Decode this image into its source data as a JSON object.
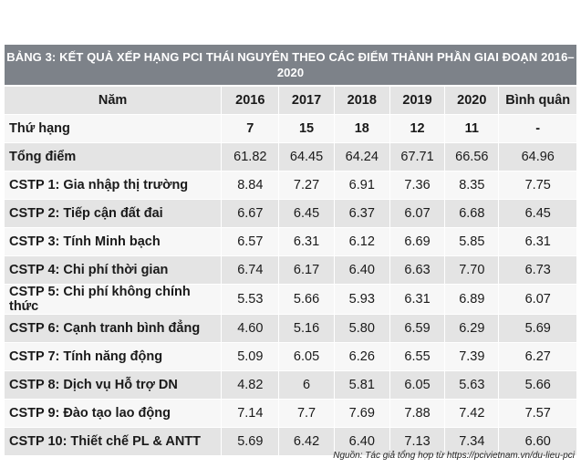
{
  "table_title": "BẢNG 3: KẾT QUẢ XẾP HẠNG PCI THÁI NGUYÊN THEO CÁC ĐIỂM THÀNH PHẦN GIAI ĐOẠN 2016–2020",
  "columns": [
    "Năm",
    "2016",
    "2017",
    "2018",
    "2019",
    "2020",
    "Bình quân"
  ],
  "rows": [
    {
      "label": "Thứ hạng",
      "values": [
        "7",
        "15",
        "18",
        "12",
        "11",
        "-"
      ]
    },
    {
      "label": "Tổng điểm",
      "values": [
        "61.82",
        "64.45",
        "64.24",
        "67.71",
        "66.56",
        "64.96"
      ]
    },
    {
      "label": "CSTP 1: Gia nhập thị trường",
      "values": [
        "8.84",
        "7.27",
        "6.91",
        "7.36",
        "8.35",
        "7.75"
      ]
    },
    {
      "label": "CSTP 2: Tiếp cận đất đai",
      "values": [
        "6.67",
        "6.45",
        "6.37",
        "6.07",
        "6.68",
        "6.45"
      ]
    },
    {
      "label": "CSTP 3: Tính Minh bạch",
      "values": [
        "6.57",
        "6.31",
        "6.12",
        "6.69",
        "5.85",
        "6.31"
      ]
    },
    {
      "label": "CSTP 4: Chi phí thời gian",
      "values": [
        "6.74",
        "6.17",
        "6.40",
        "6.63",
        "7.70",
        "6.73"
      ]
    },
    {
      "label": "CSTP 5: Chi phí không chính thức",
      "values": [
        "5.53",
        "5.66",
        "5.93",
        "6.31",
        "6.89",
        "6.07"
      ]
    },
    {
      "label": "CSTP 6: Cạnh tranh bình đẳng",
      "values": [
        "4.60",
        "5.16",
        "5.80",
        "6.59",
        "6.29",
        "5.69"
      ]
    },
    {
      "label": "CSTP 7: Tính năng động",
      "values": [
        "5.09",
        "6.05",
        "6.26",
        "6.55",
        "7.39",
        "6.27"
      ]
    },
    {
      "label": "CSTP 8: Dịch vụ Hỗ trợ DN",
      "values": [
        "4.82",
        "6",
        "5.81",
        "6.05",
        "5.63",
        "5.66"
      ]
    },
    {
      "label": "CSTP 9: Đào tạo lao động",
      "values": [
        "7.14",
        "7.7",
        "7.69",
        "7.88",
        "7.42",
        "7.57"
      ]
    },
    {
      "label": "CSTP 10: Thiết chế PL & ANTT",
      "values": [
        "5.69",
        "6.42",
        "6.40",
        "7.13",
        "7.34",
        "6.60"
      ]
    }
  ],
  "source_note": "Nguồn: Tác giả tổng hợp từ https://pcivietnam.vn/du-lieu-pci",
  "colors": {
    "banner": "#7d8289",
    "row_shade": "#e4e4e4",
    "row_plain": "#f7f7f7"
  }
}
